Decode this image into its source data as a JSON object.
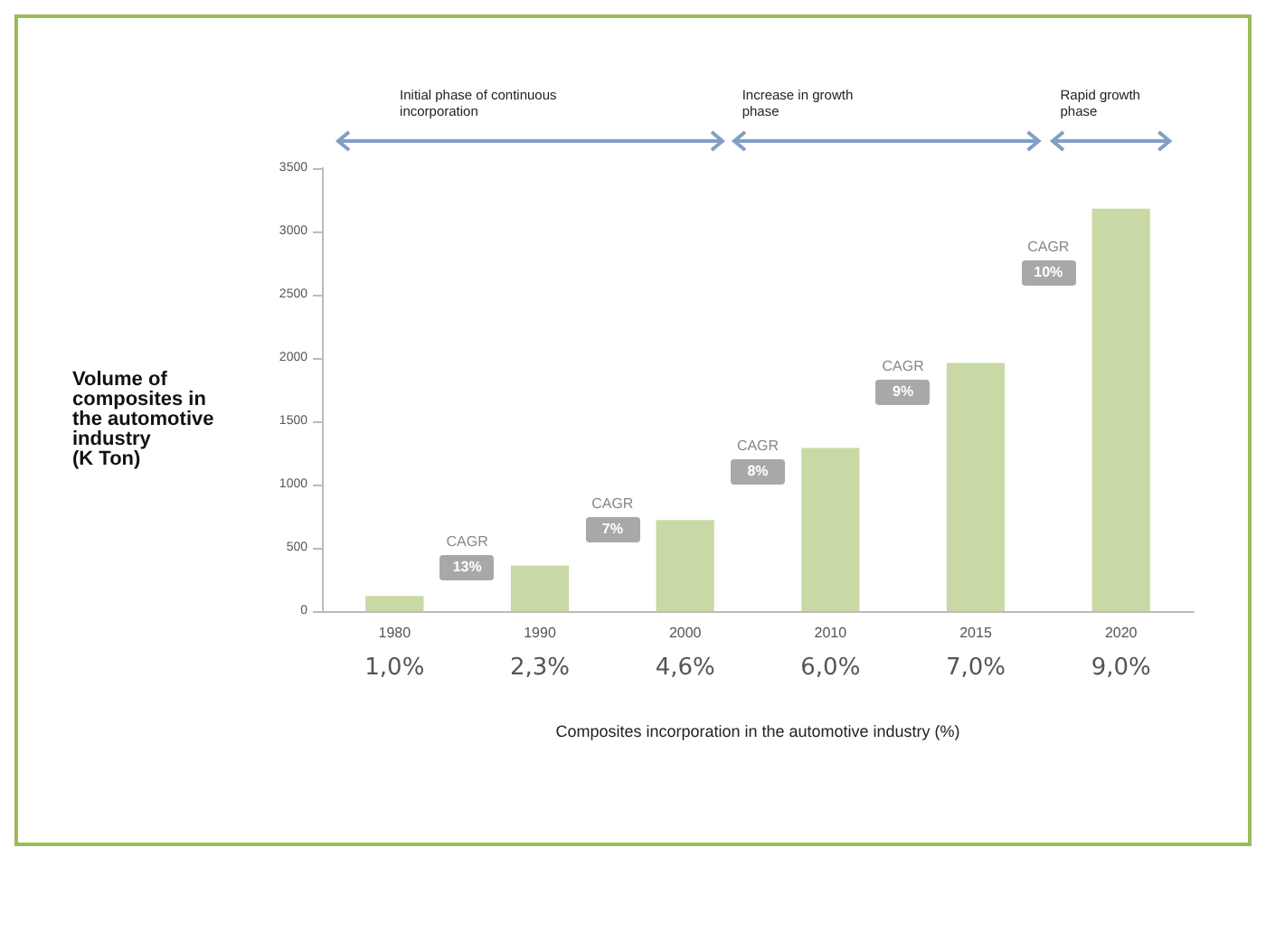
{
  "chart_data": {
    "type": "bar",
    "xlabel": "Composites incorporation in the automotive industry (%)",
    "ylabel": "Volume of\ncomposites in\nthe automotive\nindustry\n(K Ton)",
    "categories": [
      "1980",
      "1990",
      "2000",
      "2010",
      "2015",
      "2020"
    ],
    "series": [
      {
        "color": "#c9d9a5",
        "values": [
          120,
          360,
          720,
          1290,
          1960,
          3180
        ]
      }
    ],
    "ylim": [
      0,
      3500
    ],
    "yticks": [
      0,
      500,
      1000,
      1500,
      2000,
      2500,
      3000,
      3500
    ],
    "grid": false,
    "annotations": [
      "Initial phase of continuous\nincorporation",
      "Increase in growth\nphase",
      "Rapid growth\nphase",
      "CAGR\n13%",
      "CAGR\n7%",
      "CAGR\n8%",
      "CAGR\n9%",
      "CAGR\n10%",
      "1,0%",
      "2,3%",
      "4,6%",
      "6,0%",
      "7,0%",
      "9,0%"
    ]
  }
}
